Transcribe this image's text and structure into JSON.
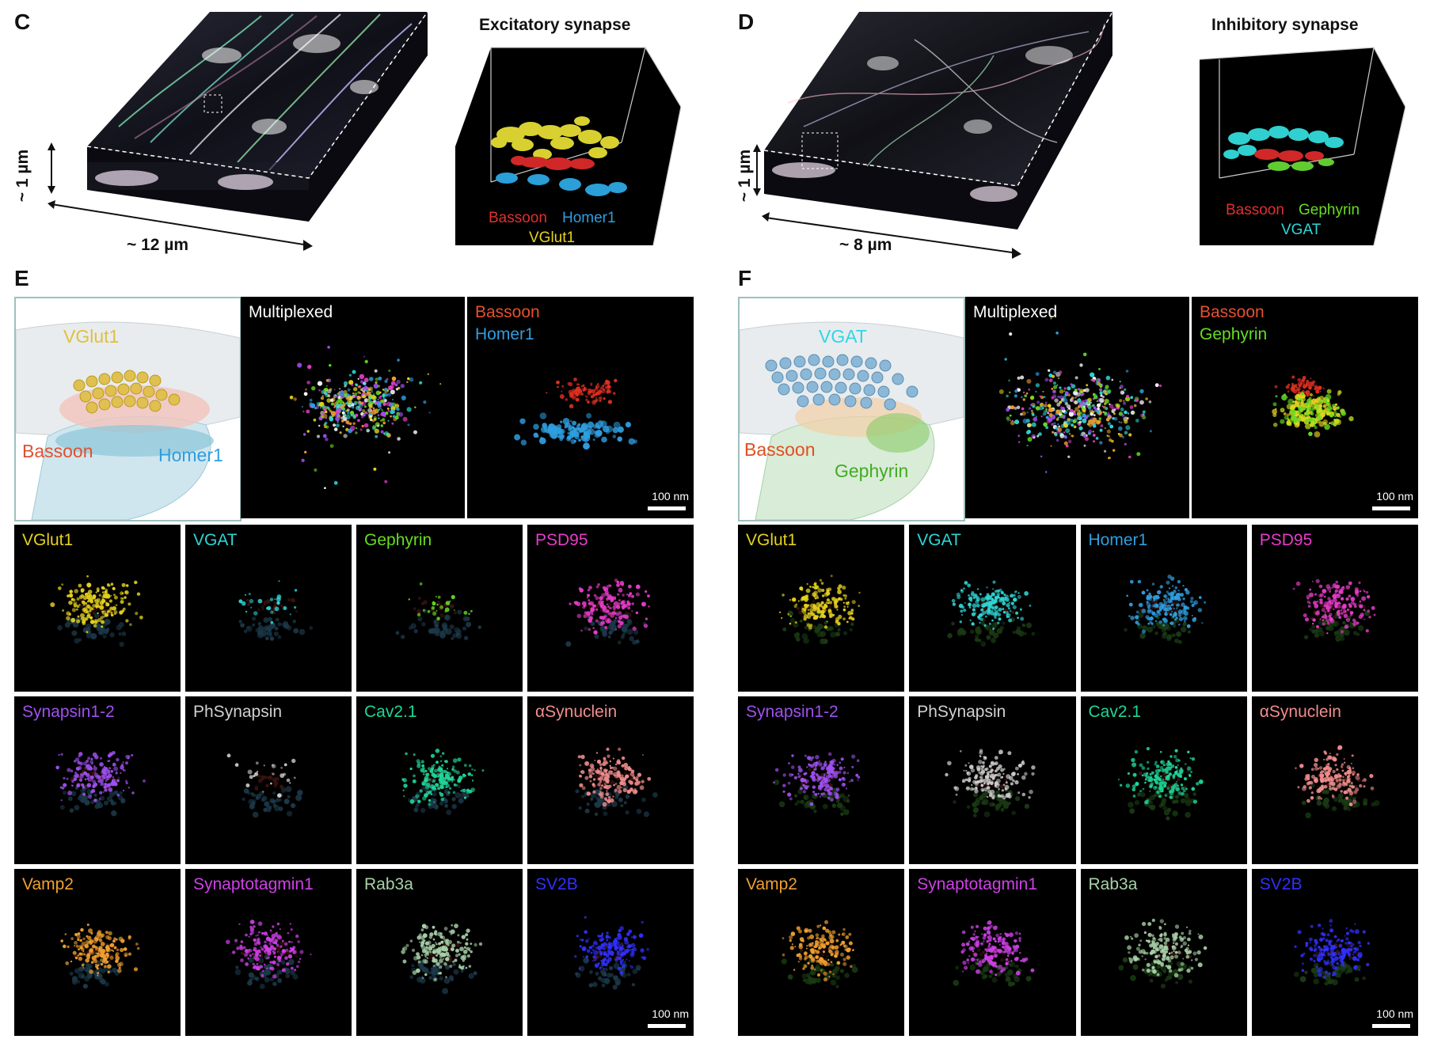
{
  "figure": {
    "panel_c": {
      "letter": "C",
      "dim_z": "~ 1 µm",
      "dim_x": "~ 12 µm",
      "inset_title": "Excitatory synapse",
      "inset_labels": [
        "Bassoon",
        "Homer1",
        "VGlut1"
      ]
    },
    "panel_d": {
      "letter": "D",
      "dim_z": "~ 1 µm",
      "dim_x": "~ 8 µm",
      "inset_title": "Inhibitory synapse",
      "inset_labels": [
        "Bassoon",
        "Gephyrin",
        "VGAT"
      ]
    },
    "panel_e": {
      "letter": "E",
      "schematic_labels": [
        "VGlut1",
        "Bassoon",
        "Homer1"
      ],
      "multiplexed_label": "Multiplexed",
      "pair_labels": [
        "Bassoon",
        "Homer1"
      ],
      "scalebar_top": "100 nm",
      "grid_labels": [
        "VGlut1",
        "VGAT",
        "Gephyrin",
        "PSD95",
        "Synapsin1-2",
        "PhSynapsin",
        "Cav2.1",
        "αSynuclein",
        "Vamp2",
        "Synaptotagmin1",
        "Rab3a",
        "SV2B"
      ],
      "scalebar_grid": "100 nm"
    },
    "panel_f": {
      "letter": "F",
      "schematic_labels": [
        "VGAT",
        "Bassoon",
        "Gephyrin"
      ],
      "multiplexed_label": "Multiplexed",
      "pair_labels": [
        "Bassoon",
        "Gephyrin"
      ],
      "scalebar_top": "100 nm",
      "grid_labels": [
        "VGlut1",
        "VGAT",
        "Homer1",
        "PSD95",
        "Synapsin1-2",
        "PhSynapsin",
        "Cav2.1",
        "αSynuclein",
        "Vamp2",
        "Synaptotagmin1",
        "Rab3a",
        "SV2B"
      ],
      "scalebar_grid": "100 nm"
    },
    "colors": {
      "VGlut1": "#e6d21e",
      "VGAT": "#2fd6d6",
      "Gephyrin": "#66dd22",
      "Homer1": "#2f9ee0",
      "PSD95": "#e63cc8",
      "Synapsin1-2": "#a050f0",
      "PhSynapsin": "#d0d0d0",
      "Cav2.1": "#1fd69a",
      "αSynuclein": "#f08c8c",
      "Vamp2": "#f0a030",
      "Synaptotagmin1": "#d040e8",
      "Rab3a": "#a8d0a8",
      "SV2B": "#3030ff",
      "Bassoon": "#e03020"
    }
  }
}
